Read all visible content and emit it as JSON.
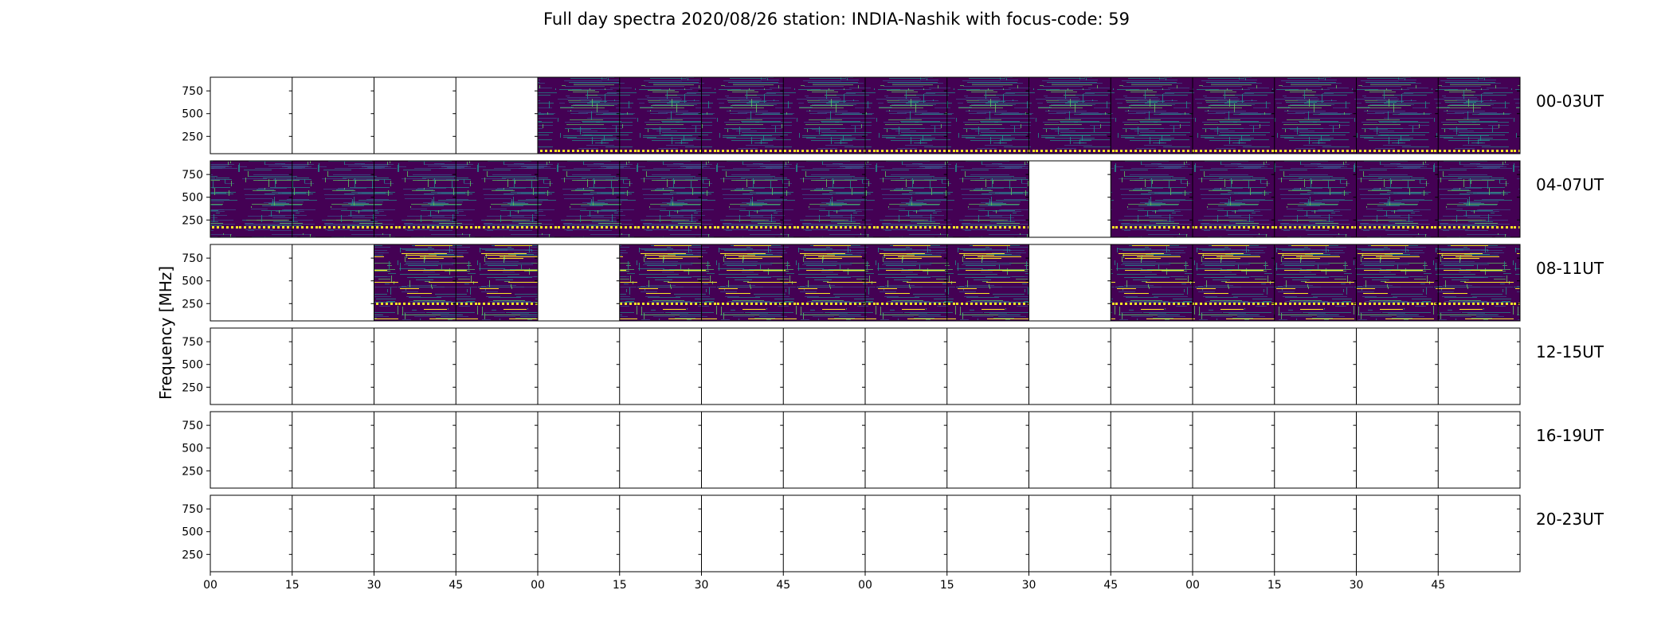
{
  "title": "Full day spectra 2020/08/26 station: INDIA-Nashik with focus-code: 59",
  "chart_data": {
    "type": "heatmap",
    "title": "Full day spectra 2020/08/26 station: INDIA-Nashik with focus-code: 59",
    "ylabel": "Frequency [MHz]",
    "xlabel": "",
    "yticks": [
      "750",
      "500",
      "250"
    ],
    "xticks": [
      "00",
      "15",
      "30",
      "45",
      "00",
      "15",
      "30",
      "45",
      "00",
      "15",
      "30",
      "45",
      "00",
      "15",
      "30",
      "45"
    ],
    "colormap": [
      "#440154",
      "#3b528b",
      "#21918c",
      "#5ec962",
      "#fde725"
    ],
    "rows": [
      {
        "label": "00-03UT",
        "panels": [
          0,
          0,
          0,
          0,
          1,
          1,
          1,
          1,
          1,
          1,
          1,
          1,
          1,
          1,
          1,
          1
        ]
      },
      {
        "label": "04-07UT",
        "panels": [
          1,
          1,
          1,
          1,
          1,
          1,
          1,
          1,
          1,
          1,
          0,
          1,
          1,
          1,
          1,
          1
        ]
      },
      {
        "label": "08-11UT",
        "panels": [
          0,
          0,
          1,
          1,
          0,
          1,
          1,
          1,
          1,
          1,
          0,
          1,
          1,
          1,
          1,
          1
        ]
      },
      {
        "label": "12-15UT",
        "panels": [
          0,
          0,
          0,
          0,
          0,
          0,
          0,
          0,
          0,
          0,
          0,
          0,
          0,
          0,
          0,
          0
        ]
      },
      {
        "label": "16-19UT",
        "panels": [
          0,
          0,
          0,
          0,
          0,
          0,
          0,
          0,
          0,
          0,
          0,
          0,
          0,
          0,
          0,
          0
        ]
      },
      {
        "label": "20-23UT",
        "panels": [
          0,
          0,
          0,
          0,
          0,
          0,
          0,
          0,
          0,
          0,
          0,
          0,
          0,
          0,
          0,
          0
        ]
      }
    ]
  }
}
